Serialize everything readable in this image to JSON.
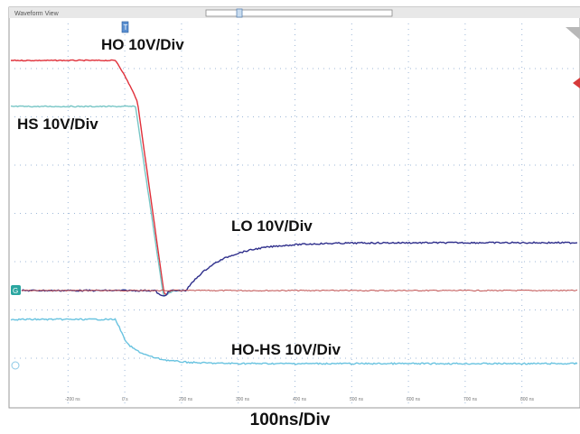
{
  "window": {
    "title": "Waveform View"
  },
  "traces": [
    {
      "label": "HO 10V/Div",
      "color": "#e0303a"
    },
    {
      "label": "HS 10V/Div",
      "color": "#78c6c6"
    },
    {
      "label": "LO 10V/Div",
      "color": "#2f2f8c"
    },
    {
      "label": "HO-HS 10V/Div",
      "color": "#69c3e0"
    }
  ],
  "time_axis": {
    "caption": "100ns/Div",
    "tick_labels": [
      "-200 ns",
      "0 s",
      "200 ns",
      "300 ns",
      "400 ns",
      "500 ns",
      "600 ns",
      "700 ns",
      "800 ns"
    ]
  },
  "colors": {
    "grid_dot": "#9db7d7",
    "frame": "#999999",
    "frame_bg": "#f7f7f7",
    "titlebar": "#e6e6e6",
    "teal_marker": "#2aa6a0",
    "red_marker": "#d63a3a"
  },
  "icons": [
    "trigger-marker-icon",
    "channel-ground-marker-icon",
    "scroll-handle-icon",
    "trigger-level-arrow-icon"
  ]
}
